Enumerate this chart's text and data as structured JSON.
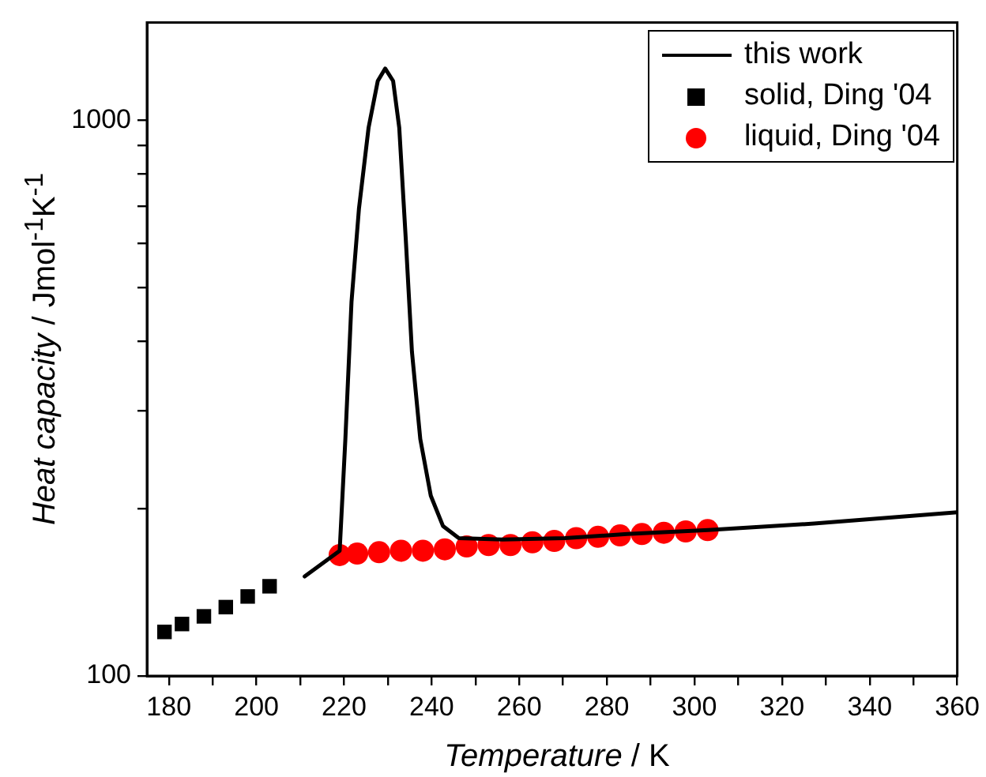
{
  "chart_data": {
    "type": "line",
    "xlabel": "Temperature / K",
    "ylabel": "Heat capacity / Jmol$^{-1}$K$^{-1}$",
    "log": "y",
    "grid": false,
    "legend": "top right",
    "xlim": [
      175,
      360
    ],
    "xticks": [
      180,
      {
        "value": 190,
        "label": null
      },
      200,
      {
        "value": 210,
        "label": null
      },
      220,
      {
        "value": 230,
        "label": null
      },
      240,
      {
        "value": 250,
        "label": null
      },
      260,
      {
        "value": 270,
        "label": null
      },
      280,
      {
        "value": 290,
        "label": null
      },
      300,
      {
        "value": 310,
        "label": null
      },
      320,
      {
        "value": 330,
        "label": null
      },
      340,
      {
        "value": 350,
        "label": null
      },
      360
    ],
    "ylim": [
      100,
      1500
    ],
    "yticks": [
      100,
      {
        "value": 200,
        "label": null
      },
      {
        "value": 300,
        "label": null
      },
      {
        "value": 400,
        "label": null
      },
      {
        "value": 500,
        "label": null
      },
      {
        "value": 600,
        "label": null
      },
      {
        "value": 700,
        "label": null
      },
      {
        "value": 800,
        "label": null
      },
      {
        "value": 900,
        "label": null
      },
      1000
    ],
    "series": [
      {
        "name": "this work",
        "color": "#000000",
        "marker": "none",
        "line_style": "solid",
        "x": [
          211,
          219,
          220.3,
          221.7,
          223.4,
          225.6,
          227.7,
          229.4,
          231.2,
          232.6,
          234.1,
          235.5,
          237.4,
          239.8,
          242.6,
          246.2,
          256.2,
          270.4,
          284.6,
          303.1,
          327.3,
          360
        ],
        "values": [
          151,
          168,
          267,
          471,
          693,
          970,
          1177,
          1239,
          1177,
          970,
          609,
          383,
          267,
          211,
          186,
          177,
          176,
          177,
          180,
          183,
          188,
          197
        ]
      },
      {
        "name": "solid, Ding '04",
        "type": "scatter",
        "color": "#000000",
        "marker": "square",
        "x": [
          179,
          183,
          188,
          193,
          198,
          203
        ],
        "values": [
          120,
          124,
          128,
          133,
          139,
          145
        ]
      },
      {
        "name": "liquid, Ding '04",
        "type": "scatter",
        "color": "#ff0000",
        "marker": "circle",
        "x": [
          219,
          223,
          228,
          233,
          238,
          243,
          248,
          253,
          258,
          263,
          268,
          273,
          278,
          283,
          288,
          293,
          298,
          303
        ],
        "values": [
          165,
          166,
          167,
          168,
          168,
          169,
          171,
          172,
          172,
          174,
          175,
          177,
          178,
          179,
          180,
          181,
          182,
          183
        ]
      }
    ]
  }
}
